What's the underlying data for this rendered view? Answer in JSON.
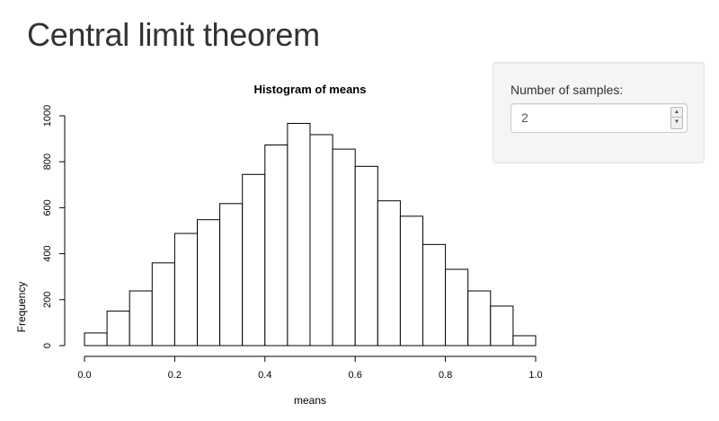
{
  "page": {
    "title": "Central limit theorem"
  },
  "controls": {
    "samples_label": "Number of samples:",
    "samples_value": "2"
  },
  "chart_data": {
    "type": "bar",
    "title": "Histogram of means",
    "xlabel": "means",
    "ylabel": "Frequency",
    "bin_edges": [
      0.0,
      0.05,
      0.1,
      0.15,
      0.2,
      0.25,
      0.3,
      0.35,
      0.4,
      0.45,
      0.5,
      0.55,
      0.6,
      0.65,
      0.7,
      0.75,
      0.8,
      0.85,
      0.9,
      0.95,
      1.0
    ],
    "values": [
      55,
      150,
      238,
      360,
      488,
      548,
      618,
      745,
      873,
      967,
      918,
      855,
      780,
      630,
      563,
      440,
      332,
      238,
      172,
      43
    ],
    "xlim": [
      0,
      1
    ],
    "ylim": [
      0,
      1000
    ],
    "xticks": [
      "0.0",
      "0.2",
      "0.4",
      "0.6",
      "0.8",
      "1.0"
    ],
    "xtick_values": [
      0,
      0.2,
      0.4,
      0.6,
      0.8,
      1.0
    ],
    "yticks": [
      "0",
      "200",
      "400",
      "600",
      "800",
      "1000"
    ],
    "ytick_values": [
      0,
      200,
      400,
      600,
      800,
      1000
    ],
    "grid": false,
    "bar_fill": "#ffffff",
    "bar_stroke": "#000000"
  }
}
